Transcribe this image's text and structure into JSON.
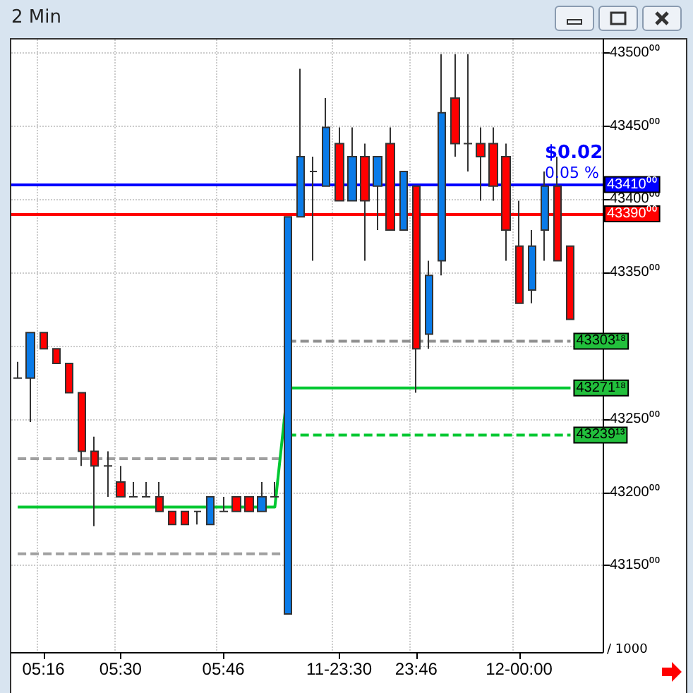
{
  "chart_data": {
    "type": "candlestick",
    "title": "2 Min",
    "categories": [
      null,
      null,
      "05:16",
      null,
      null,
      null,
      null,
      null,
      "05:30",
      null,
      null,
      null,
      null,
      null,
      null,
      null,
      "05:46",
      null,
      null,
      null,
      null,
      null,
      null,
      null,
      null,
      "11-23:30",
      null,
      null,
      null,
      null,
      null,
      "23:46",
      null,
      null,
      null,
      null,
      null,
      null,
      null,
      "12-00:00",
      null,
      null,
      null,
      null,
      null,
      null
    ],
    "ohlc": [
      [
        43278,
        43289,
        43278,
        43278
      ],
      [
        43278,
        43309,
        43248,
        43309
      ],
      [
        43309,
        43309,
        43298,
        43298
      ],
      [
        43298,
        43298,
        43288,
        43288
      ],
      [
        43288,
        43288,
        43268,
        43268
      ],
      [
        43268,
        43268,
        43218,
        43228
      ],
      [
        43228,
        43238,
        43177,
        43218
      ],
      [
        43218,
        43228,
        43197,
        43218
      ],
      [
        43207,
        43218,
        43197,
        43197
      ],
      [
        43197,
        43207,
        43197,
        43197
      ],
      [
        43197,
        43207,
        43197,
        43197
      ],
      [
        43197,
        43207,
        43187,
        43187
      ],
      [
        43187,
        43187,
        43178,
        43178
      ],
      [
        43187,
        43187,
        43178,
        43178
      ],
      [
        43187,
        43187,
        43178,
        43187
      ],
      [
        43178,
        43197,
        43178,
        43197
      ],
      [
        43187,
        43197,
        43187,
        43187
      ],
      [
        43197,
        43197,
        43187,
        43187
      ],
      [
        43197,
        43197,
        43187,
        43187
      ],
      [
        43187,
        43207,
        43187,
        43197
      ],
      [
        43197,
        43207,
        43197,
        43197
      ],
      [
        43117,
        43388,
        43117,
        43388
      ],
      [
        43388,
        43489,
        43388,
        43429
      ],
      [
        43419,
        43429,
        43358,
        43419
      ],
      [
        43409,
        43469,
        43409,
        43449
      ],
      [
        43438,
        43449,
        43399,
        43399
      ],
      [
        43399,
        43449,
        43399,
        43429
      ],
      [
        43429,
        43438,
        43358,
        43399
      ],
      [
        43409,
        43429,
        43379,
        43429
      ],
      [
        43438,
        43449,
        43379,
        43379
      ],
      [
        43379,
        43419,
        43379,
        43419
      ],
      [
        43409,
        43409,
        43268,
        43298
      ],
      [
        43308,
        43358,
        43298,
        43348
      ],
      [
        43358,
        43499,
        43348,
        43459
      ],
      [
        43469,
        43499,
        43429,
        43438
      ],
      [
        43438,
        43499,
        43419,
        43438
      ],
      [
        43438,
        43449,
        43399,
        43429
      ],
      [
        43438,
        43449,
        43399,
        43409
      ],
      [
        43429,
        43438,
        43358,
        43379
      ],
      [
        43368,
        43399,
        43329,
        43329
      ],
      [
        43338,
        43379,
        43329,
        43368
      ],
      [
        43379,
        43419,
        43358,
        43409
      ],
      [
        43409,
        43429,
        43358,
        43358
      ],
      [
        43368,
        43368,
        43318,
        43318
      ],
      null,
      null
    ],
    "colors": [
      "#333333",
      "#0a7be8",
      "#ff0000",
      "#ff0000",
      "#ff0000",
      "#ff0000",
      "#ff0000",
      "#333333",
      "#ff0000",
      "#333333",
      "#333333",
      "#ff0000",
      "#ff0000",
      "#ff0000",
      "#333333",
      "#0a7be8",
      "#333333",
      "#ff0000",
      "#ff0000",
      "#0a7be8",
      "#333333",
      "#0a7be8",
      "#0a7be8",
      "#333333",
      "#0a7be8",
      "#ff0000",
      "#0a7be8",
      "#ff0000",
      "#0a7be8",
      "#ff0000",
      "#0a7be8",
      "#ff0000",
      "#0a7be8",
      "#0a7be8",
      "#ff0000",
      "#333333",
      "#ff0000",
      "#ff0000",
      "#ff0000",
      "#ff0000",
      "#0a7be8",
      "#0a7be8",
      "#ff0000",
      "#ff0000",
      null,
      null
    ],
    "series": [
      {
        "type": "line",
        "color": "#a0a0a0",
        "line_style": "dashed",
        "values": [
          43223,
          43223,
          43223,
          43223,
          43223,
          43223,
          43223,
          43223,
          43223,
          43223,
          43223,
          43223,
          43223,
          43223,
          43223,
          43223,
          43223,
          43223,
          43223,
          43223,
          43223,
          43223,
          null,
          null,
          null,
          null,
          null,
          null,
          null,
          null,
          null,
          null,
          null,
          null,
          null,
          null,
          null,
          null,
          null,
          null,
          null,
          null,
          null,
          null,
          null,
          null
        ]
      },
      {
        "type": "line",
        "color": "#a0a0a0",
        "line_style": "dashed",
        "values": [
          43158,
          43158,
          43158,
          43158,
          43158,
          43158,
          43158,
          43158,
          43158,
          43158,
          43158,
          43158,
          43158,
          43158,
          43158,
          43158,
          43158,
          43158,
          43158,
          43158,
          43158,
          43158,
          null,
          null,
          null,
          null,
          null,
          null,
          null,
          null,
          null,
          null,
          null,
          null,
          null,
          null,
          null,
          null,
          null,
          null,
          null,
          null,
          null,
          null,
          null,
          null
        ]
      },
      {
        "type": "line",
        "color": "#00c832",
        "line_style": "solid",
        "values": [
          43190,
          43190,
          43190,
          43190,
          43190,
          43190,
          43190,
          43190,
          43190,
          43190,
          43190,
          43190,
          43190,
          43190,
          43190,
          43190,
          43190,
          43190,
          43190,
          43190,
          43190,
          43271.18,
          43271.18,
          43271.18,
          43271.18,
          43271.18,
          43271.18,
          43271.18,
          43271.18,
          43271.18,
          43271.18,
          43271.18,
          43271.18,
          43271.18,
          43271.18,
          43271.18,
          43271.18,
          43271.18,
          43271.18,
          43271.18,
          43271.18,
          43271.18,
          43271.18,
          43271.18,
          null,
          null
        ],
        "value_labels": [
          null,
          null,
          null,
          null,
          null,
          null,
          null,
          null,
          null,
          null,
          null,
          null,
          null,
          null,
          null,
          null,
          null,
          null,
          null,
          null,
          null,
          null,
          null,
          null,
          null,
          null,
          null,
          null,
          null,
          null,
          null,
          null,
          null,
          null,
          null,
          null,
          null,
          null,
          null,
          null,
          null,
          null,
          null,
          "43271¹⁸",
          null,
          null
        ]
      },
      {
        "type": "line",
        "color": "#909090",
        "line_style": "dashed",
        "values": [
          null,
          null,
          null,
          null,
          null,
          null,
          null,
          null,
          null,
          null,
          null,
          null,
          null,
          null,
          null,
          null,
          null,
          null,
          null,
          null,
          null,
          43303.18,
          43303.18,
          43303.18,
          43303.18,
          43303.18,
          43303.18,
          43303.18,
          43303.18,
          43303.18,
          43303.18,
          43303.18,
          43303.18,
          43303.18,
          43303.18,
          43303.18,
          43303.18,
          43303.18,
          43303.18,
          43303.18,
          43303.18,
          43303.18,
          43303.18,
          43303.18,
          null,
          null
        ],
        "value_labels": [
          null,
          null,
          null,
          null,
          null,
          null,
          null,
          null,
          null,
          null,
          null,
          null,
          null,
          null,
          null,
          null,
          null,
          null,
          null,
          null,
          null,
          null,
          null,
          null,
          null,
          null,
          null,
          null,
          null,
          null,
          null,
          null,
          null,
          null,
          null,
          null,
          null,
          null,
          null,
          null,
          null,
          null,
          null,
          "43303¹⁸",
          null,
          null
        ]
      },
      {
        "type": "line",
        "color": "#00c832",
        "line_style": "dashed",
        "values": [
          null,
          null,
          null,
          null,
          null,
          null,
          null,
          null,
          null,
          null,
          null,
          null,
          null,
          null,
          null,
          null,
          null,
          null,
          null,
          null,
          null,
          43239.13,
          43239.13,
          43239.13,
          43239.13,
          43239.13,
          43239.13,
          43239.13,
          43239.13,
          43239.13,
          43239.13,
          43239.13,
          43239.13,
          43239.13,
          43239.13,
          43239.13,
          43239.13,
          43239.13,
          43239.13,
          43239.13,
          43239.13,
          43239.13,
          43239.13,
          43239.13,
          null,
          null
        ],
        "value_labels": [
          null,
          null,
          null,
          null,
          null,
          null,
          null,
          null,
          null,
          null,
          null,
          null,
          null,
          null,
          null,
          null,
          null,
          null,
          null,
          null,
          null,
          null,
          null,
          null,
          null,
          null,
          null,
          null,
          null,
          null,
          null,
          null,
          null,
          null,
          null,
          null,
          null,
          null,
          null,
          null,
          null,
          null,
          null,
          "43239¹³",
          null,
          null
        ]
      }
    ],
    "ref_lines": [
      {
        "axis": "y",
        "value": 43410,
        "label": "43410⁰⁰",
        "color": "#0000ff"
      },
      {
        "axis": "y",
        "value": 43390,
        "label": "43390⁰⁰",
        "color": "#ff0000"
      }
    ],
    "ylim": [
      43091,
      43509
    ],
    "yticks": [
      {
        "value": 43150,
        "label": "43150⁰⁰"
      },
      {
        "value": 43200,
        "label": "43200⁰⁰"
      },
      {
        "value": 43250,
        "label": "43250⁰⁰"
      },
      {
        "value": 43300,
        "label": null
      },
      {
        "value": 43350,
        "label": "43350⁰⁰"
      },
      {
        "value": 43400,
        "label": "43400⁰⁰"
      },
      {
        "value": 43450,
        "label": "43450⁰⁰"
      },
      {
        "value": 43500,
        "label": "43500⁰⁰"
      }
    ],
    "grid": true,
    "annotations": [
      "$0.02",
      "0.05 %",
      "/ 1000"
    ]
  }
}
